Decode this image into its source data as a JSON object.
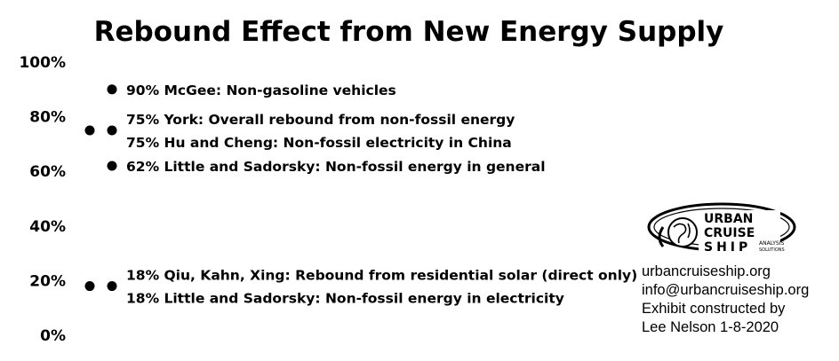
{
  "chart_data": {
    "type": "scatter",
    "title": "Rebound Effect from New Energy Supply",
    "ylim": [
      0,
      100
    ],
    "y_ticks": [
      "0%",
      "20%",
      "40%",
      "60%",
      "80%",
      "100%"
    ],
    "grid": false,
    "legend": "none",
    "points": [
      {
        "column": 2,
        "y": 90,
        "label": "90% McGee: Non-gasoline vehicles"
      },
      {
        "column": 1,
        "y": 75,
        "label": ""
      },
      {
        "column": 2,
        "y": 75,
        "label": "75% York: Overall rebound from non-fossil energy"
      },
      {
        "column": 2,
        "y": 75,
        "label": "75% Hu and Cheng: Non-fossil electricity in China"
      },
      {
        "column": 2,
        "y": 62,
        "label": "62% Little and Sadorsky: Non-fossil energy in general"
      },
      {
        "column": 1,
        "y": 18,
        "label": ""
      },
      {
        "column": 2,
        "y": 18,
        "label": "18% Qiu, Kahn, Xing: Rebound from residential solar (direct only)"
      },
      {
        "column": 2,
        "y": 18,
        "label": "18% Little and Sadorsky: Non-fossil energy in electricity"
      }
    ],
    "marker_color": "#000000"
  },
  "logo": {
    "line1": "URBAN",
    "line2": "CRUISE",
    "line3": "SHIP",
    "small1": "ANALYSIS",
    "small2": "SOLUTIONS"
  },
  "credits": {
    "website": "urbancruiseship.org",
    "email": "info@urbancruiseship.org",
    "line3": "Exhibit constructed by",
    "line4": "Lee Nelson 1-8-2020"
  }
}
